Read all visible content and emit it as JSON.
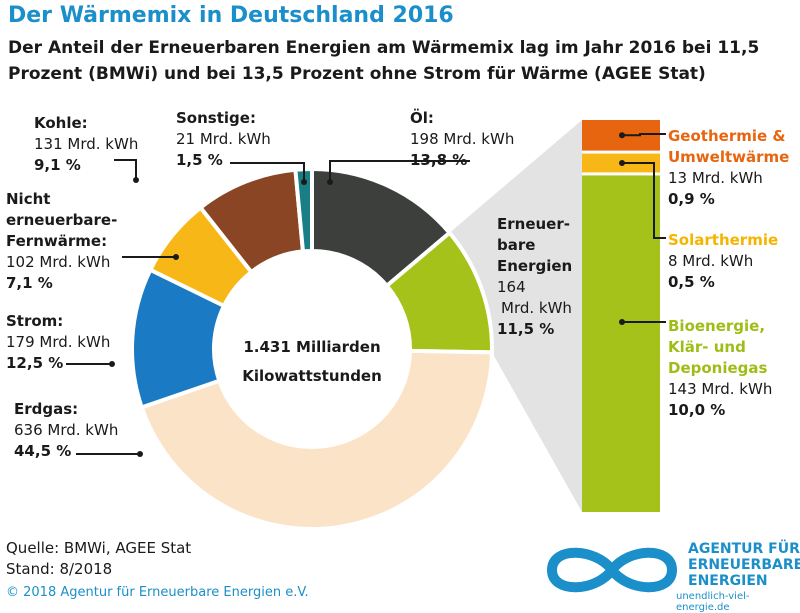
{
  "header": {
    "title": "Der Wärmemix in Deutschland 2016",
    "subtitle": "Der Anteil der Erneuerbaren Energien am Wärmemix  lag im Jahr 2016 bei 11,5 Prozent (BMWi) und bei 13,5 Prozent ohne Strom für Wärme (AGEE Stat)"
  },
  "chart_data": [
    {
      "type": "pie",
      "subtype": "donut",
      "center_label_1": "1.431 Milliarden",
      "center_label_2": "Kilowattstunden",
      "unit": "Mrd. kWh",
      "slices": [
        {
          "name": "Öl",
          "value": 198,
          "percent": "13,8 %",
          "color": "#3c3f3b"
        },
        {
          "name": "Erneuerbare Energien",
          "value": 164,
          "percent": "11,5 %",
          "color": "#a5c21a"
        },
        {
          "name": "Erdgas",
          "value": 636,
          "percent": "44,5 %",
          "color": "#fbe3c8"
        },
        {
          "name": "Strom",
          "value": 179,
          "percent": "12,5 %",
          "color": "#1a7bc4"
        },
        {
          "name": "Nicht erneuerbare-Fernwärme",
          "value": 102,
          "percent": "7,1 %",
          "color": "#f7b717"
        },
        {
          "name": "Kohle",
          "value": 131,
          "percent": "9,1 %",
          "color": "#8a4524"
        },
        {
          "name": "Sonstige",
          "value": 21,
          "percent": "1,5 %",
          "color": "#197e86"
        }
      ]
    },
    {
      "type": "bar",
      "subtype": "stacked-column",
      "title": "Erneuerbare Energien",
      "segments": [
        {
          "name": "Geothermie & Umweltwärme",
          "value": 13,
          "percent": "0,9 %",
          "color": "#e8650f"
        },
        {
          "name": "Solarthermie",
          "value": 8,
          "percent": "0,5 %",
          "color": "#f7b717"
        },
        {
          "name": "Bioenergie, Klär- und Deponiegas",
          "value": 143,
          "percent": "10,0 %",
          "color": "#a5c21a"
        }
      ]
    }
  ],
  "labels": {
    "oel": {
      "name": "Öl:",
      "value": "198 Mrd. kWh",
      "pct": "13,8 %"
    },
    "sonstige": {
      "name": "Sonstige:",
      "value": "21 Mrd. kWh",
      "pct": "1,5 %"
    },
    "kohle": {
      "name": "Kohle:",
      "value": "131 Mrd. kWh",
      "pct": "9,1 %"
    },
    "fernwaerme": {
      "name1": "Nicht",
      "name2": "erneuerbare-",
      "name3": "Fernwärme:",
      "value": "102 Mrd. kWh",
      "pct": "7,1 %"
    },
    "strom": {
      "name": "Strom:",
      "value": "179 Mrd. kWh",
      "pct": "12,5 %"
    },
    "erdgas": {
      "name": "Erdgas:",
      "value": "636 Mrd. kWh",
      "pct": "44,5 %"
    },
    "ee": {
      "name1": "Erneuer-",
      "name2": "bare",
      "name3": "Energien",
      "value1": "164",
      "value2": "Mrd. kWh",
      "pct": "11,5 %"
    },
    "geo": {
      "name1": "Geothermie &",
      "name2": "Umweltwärme",
      "value": "13 Mrd. kWh",
      "pct": "0,9 %"
    },
    "solar": {
      "name": "Solarthermie",
      "value": "8 Mrd. kWh",
      "pct": "0,5 %"
    },
    "bio": {
      "name1": "Bioenergie,",
      "name2": "Klär- und",
      "name3": "Deponiegas",
      "value": "143 Mrd. kWh",
      "pct": "10,0 %"
    }
  },
  "footer": {
    "source": "Quelle: BMWi, AGEE Stat",
    "date": "Stand: 8/2018",
    "copyright": "© 2018 Agentur für Erneuerbare Energien e.V."
  },
  "logo": {
    "line1": "AGENTUR FÜR",
    "line2": "ERNEUERBARE",
    "line3": "ENERGIEN",
    "url": "unendlich-viel-energie.de",
    "color": "#1b8fc9"
  }
}
